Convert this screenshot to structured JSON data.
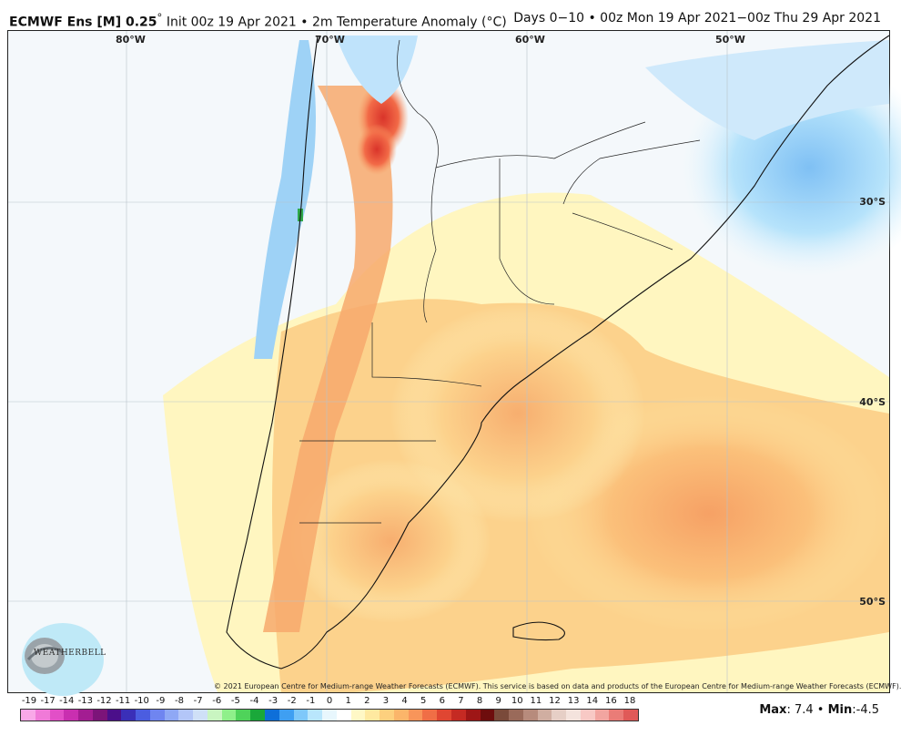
{
  "header": {
    "model": "ECMWF Ens [M] 0.25",
    "model_unit": "°",
    "init": "Init 00z 19 Apr 2021",
    "separator": "•",
    "variable": "2m Temperature Anomaly (°C)",
    "valid": "Days 0−10 • 00z Mon 19 Apr 2021−00z Thu 29 Apr 2021"
  },
  "map": {
    "lon_labels": [
      "80°W",
      "70°W",
      "60°W",
      "50°W"
    ],
    "lat_labels": [
      "30°S",
      "40°S",
      "50°S"
    ],
    "credit": "© 2021 European Centre for Medium-range Weather Forecasts (ECMWF). This service is based on data and products of the European Centre for Medium-range Weather Forecasts (ECMWF).",
    "logo_text": "WEATHERBELL"
  },
  "scale": {
    "labels": [
      "-19",
      "-17",
      "-14",
      "-13",
      "-12",
      "-11",
      "-10",
      "-9",
      "-8",
      "-7",
      "-6",
      "-5",
      "-4",
      "-3",
      "-2",
      "-1",
      "0",
      "1",
      "2",
      "3",
      "4",
      "5",
      "6",
      "7",
      "8",
      "9",
      "10",
      "11",
      "12",
      "13",
      "14",
      "16",
      "18"
    ],
    "colors": [
      "#f9a8e8",
      "#f07ad8",
      "#e24fc7",
      "#c92fb0",
      "#a31d92",
      "#7c1479",
      "#4b0f8a",
      "#3a2fb8",
      "#4b5de0",
      "#6f85f0",
      "#8fa8f5",
      "#b3c6f8",
      "#cfe0f7",
      "#c9f5c1",
      "#8ff08a",
      "#4fd35a",
      "#1aa83a",
      "#0e6fd9",
      "#3f9ff2",
      "#7ec8fa",
      "#b9e6fc",
      "#e8f7fd",
      "#ffffff",
      "#fff8c6",
      "#ffe9a0",
      "#fdd07e",
      "#fbb56a",
      "#f8955a",
      "#f06e46",
      "#e04632",
      "#c52a23",
      "#9e1616",
      "#6e0d0d",
      "#7a4a3a",
      "#9a6a5a",
      "#b78b7c",
      "#d0aea1",
      "#e6cfc6",
      "#f4e3dd",
      "#f8c9c5",
      "#f2a5a0",
      "#ea7c77",
      "#e05a58"
    ],
    "max_label": "Max",
    "max_value": "7.4",
    "min_label": "Min",
    "min_value": "-4.5"
  }
}
